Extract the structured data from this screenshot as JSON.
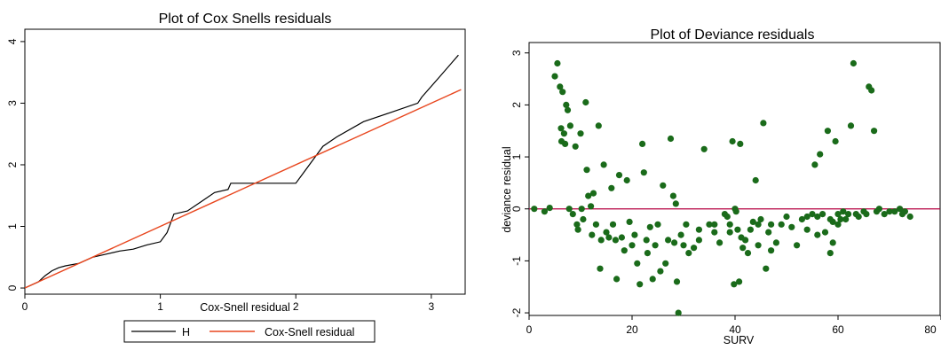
{
  "chart_data": [
    {
      "type": "line",
      "title": "Plot of Cox Snells residuals",
      "xlabel": "Cox-Snell residual",
      "ylabel": "",
      "xlim": [
        0,
        3.25
      ],
      "ylim": [
        -0.1,
        4.2
      ],
      "xticks": [
        0,
        1,
        2,
        3
      ],
      "yticks": [
        0,
        1,
        2,
        3,
        4
      ],
      "grid": false,
      "legend_position": "bottom",
      "series": [
        {
          "name": "H",
          "color": "#000000",
          "x": [
            0,
            0.05,
            0.1,
            0.15,
            0.2,
            0.25,
            0.3,
            0.4,
            0.5,
            0.6,
            0.7,
            0.8,
            0.9,
            1.0,
            1.05,
            1.1,
            1.2,
            1.3,
            1.4,
            1.5,
            1.52,
            1.6,
            1.7,
            1.8,
            1.9,
            2.0,
            2.05,
            2.1,
            2.2,
            2.3,
            2.5,
            2.7,
            2.9,
            2.93,
            3.05,
            3.2
          ],
          "y": [
            0.0,
            0.05,
            0.1,
            0.2,
            0.28,
            0.33,
            0.36,
            0.4,
            0.5,
            0.55,
            0.6,
            0.63,
            0.7,
            0.75,
            0.9,
            1.2,
            1.25,
            1.4,
            1.55,
            1.6,
            1.7,
            1.7,
            1.7,
            1.7,
            1.7,
            1.7,
            1.85,
            2.0,
            2.3,
            2.45,
            2.7,
            2.85,
            3.0,
            3.1,
            3.4,
            3.78
          ]
        },
        {
          "name": "Cox-Snell residual",
          "color": "#e8461e",
          "x": [
            0,
            3.22
          ],
          "y": [
            0,
            3.22
          ]
        }
      ]
    },
    {
      "type": "scatter",
      "title": "Plot of Deviance residuals",
      "xlabel": "SURV",
      "ylabel": "deviance residual",
      "xlim": [
        0,
        80
      ],
      "ylim": [
        -2.05,
        3.2
      ],
      "xticks": [
        0,
        20,
        40,
        60,
        80
      ],
      "yticks": [
        -2,
        -1,
        0,
        1,
        2,
        3
      ],
      "grid": false,
      "reference_line": {
        "y": 0,
        "color": "#b40040"
      },
      "point_color": "#1a6b1a",
      "points": [
        [
          1,
          0.0
        ],
        [
          3,
          -0.05
        ],
        [
          4,
          0.02
        ],
        [
          5,
          2.55
        ],
        [
          5.5,
          2.8
        ],
        [
          6,
          2.35
        ],
        [
          6.2,
          1.55
        ],
        [
          6.5,
          2.25
        ],
        [
          6.3,
          1.3
        ],
        [
          6.8,
          1.45
        ],
        [
          7,
          1.25
        ],
        [
          7.2,
          2.0
        ],
        [
          7.5,
          1.9
        ],
        [
          8,
          1.6
        ],
        [
          7.8,
          0.0
        ],
        [
          8.5,
          -0.1
        ],
        [
          9,
          1.2
        ],
        [
          9.3,
          -0.3
        ],
        [
          9.5,
          -0.4
        ],
        [
          10,
          1.45
        ],
        [
          10.2,
          0.0
        ],
        [
          10.5,
          -0.2
        ],
        [
          11,
          2.05
        ],
        [
          11.2,
          0.75
        ],
        [
          11.5,
          0.25
        ],
        [
          12,
          0.05
        ],
        [
          12.2,
          -0.5
        ],
        [
          12.5,
          0.3
        ],
        [
          13,
          -0.3
        ],
        [
          13.5,
          1.6
        ],
        [
          13.8,
          -1.15
        ],
        [
          14,
          -0.6
        ],
        [
          14.5,
          0.85
        ],
        [
          15,
          -0.45
        ],
        [
          15.5,
          -0.55
        ],
        [
          16,
          0.4
        ],
        [
          16.3,
          -0.3
        ],
        [
          16.8,
          -0.6
        ],
        [
          17,
          -1.35
        ],
        [
          17.5,
          0.65
        ],
        [
          18,
          -0.55
        ],
        [
          18.5,
          -0.8
        ],
        [
          19,
          0.55
        ],
        [
          19.5,
          -0.25
        ],
        [
          20,
          -0.7
        ],
        [
          20.5,
          -0.5
        ],
        [
          21,
          -1.05
        ],
        [
          21.5,
          -1.45
        ],
        [
          22,
          1.25
        ],
        [
          22.3,
          0.7
        ],
        [
          22.8,
          -0.6
        ],
        [
          23,
          -0.85
        ],
        [
          23.5,
          -0.35
        ],
        [
          24,
          -1.35
        ],
        [
          24.5,
          -0.7
        ],
        [
          25,
          -0.3
        ],
        [
          25.5,
          -1.2
        ],
        [
          26,
          0.45
        ],
        [
          26.5,
          -1.05
        ],
        [
          27,
          -0.6
        ],
        [
          27.5,
          1.35
        ],
        [
          28,
          0.25
        ],
        [
          28.2,
          -0.65
        ],
        [
          28.5,
          0.1
        ],
        [
          28.7,
          -1.4
        ],
        [
          29,
          -2.0
        ],
        [
          29.5,
          -0.5
        ],
        [
          30,
          -0.7
        ],
        [
          30.5,
          -0.3
        ],
        [
          31,
          -0.85
        ],
        [
          32,
          -0.75
        ],
        [
          33,
          -0.6
        ],
        [
          34,
          1.15
        ],
        [
          35,
          -0.3
        ],
        [
          36,
          -0.45
        ],
        [
          37,
          -0.65
        ],
        [
          38,
          -0.1
        ],
        [
          39,
          -0.3
        ],
        [
          39.5,
          1.3
        ],
        [
          39.8,
          -1.45
        ],
        [
          40,
          0.0
        ],
        [
          40.2,
          -0.05
        ],
        [
          40.5,
          -0.4
        ],
        [
          40.8,
          -1.4
        ],
        [
          41,
          1.25
        ],
        [
          41.2,
          -0.55
        ],
        [
          41.5,
          -0.75
        ],
        [
          42,
          -0.6
        ],
        [
          42.5,
          -0.85
        ],
        [
          43,
          -0.4
        ],
        [
          43.5,
          -0.25
        ],
        [
          44,
          0.55
        ],
        [
          44.5,
          -0.3
        ],
        [
          45,
          -0.2
        ],
        [
          45.5,
          1.65
        ],
        [
          46,
          -1.15
        ],
        [
          46.5,
          -0.45
        ],
        [
          47,
          -0.8
        ],
        [
          48,
          -0.65
        ],
        [
          49,
          -0.3
        ],
        [
          50,
          -0.15
        ],
        [
          51,
          -0.35
        ],
        [
          52,
          -0.7
        ],
        [
          53,
          -0.2
        ],
        [
          54,
          -0.15
        ],
        [
          55,
          -0.1
        ],
        [
          55.5,
          0.85
        ],
        [
          56,
          -0.15
        ],
        [
          56.5,
          1.05
        ],
        [
          57,
          -0.1
        ],
        [
          57.5,
          -0.45
        ],
        [
          58,
          1.5
        ],
        [
          58.5,
          -0.85
        ],
        [
          59,
          -0.65
        ],
        [
          59.5,
          1.3
        ],
        [
          60,
          -0.1
        ],
        [
          60.5,
          -0.2
        ],
        [
          61,
          -0.05
        ],
        [
          62,
          -0.1
        ],
        [
          62.5,
          1.6
        ],
        [
          63,
          2.8
        ],
        [
          63.5,
          -0.1
        ],
        [
          64,
          -0.15
        ],
        [
          65,
          -0.05
        ],
        [
          65.5,
          -0.1
        ],
        [
          66,
          2.35
        ],
        [
          66.5,
          2.28
        ],
        [
          67,
          1.5
        ],
        [
          67.5,
          -0.05
        ],
        [
          68,
          0.0
        ],
        [
          69,
          -0.1
        ],
        [
          70,
          -0.05
        ],
        [
          71,
          -0.05
        ],
        [
          72,
          0.0
        ],
        [
          72.5,
          -0.1
        ],
        [
          73,
          -0.05
        ],
        [
          74,
          -0.15
        ],
        [
          58.5,
          -0.2
        ],
        [
          59,
          -0.25
        ],
        [
          60,
          -0.3
        ],
        [
          61.5,
          -0.2
        ],
        [
          54,
          -0.4
        ],
        [
          56,
          -0.5
        ],
        [
          38.5,
          -0.15
        ],
        [
          39,
          -0.45
        ],
        [
          33,
          -0.4
        ],
        [
          36,
          -0.3
        ],
        [
          44.5,
          -0.7
        ],
        [
          47,
          -0.3
        ]
      ]
    }
  ]
}
